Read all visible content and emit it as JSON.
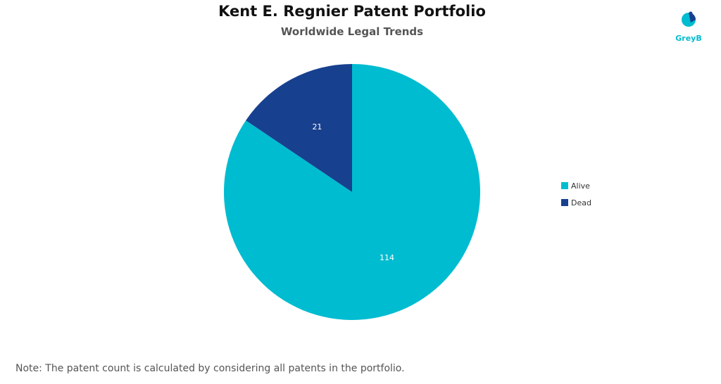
{
  "chart_data": {
    "type": "pie",
    "title": "Kent E. Regnier Patent Portfolio",
    "subtitle": "Worldwide Legal Trends",
    "categories": [
      "Alive",
      "Dead"
    ],
    "values": [
      114,
      21
    ],
    "data_labels": [
      "114",
      "21"
    ],
    "colors": [
      "#00BCD0",
      "#17408F"
    ],
    "start_angle_deg": 0,
    "direction": "clockwise",
    "legend": {
      "placement": "right",
      "entries": [
        "Alive",
        "Dead"
      ]
    }
  },
  "footnote": "Note: The patent count is calculated by considering all patents in the portfolio.",
  "brand": {
    "name": "GreyB",
    "colors": [
      "#00BCD0",
      "#17408F"
    ]
  }
}
